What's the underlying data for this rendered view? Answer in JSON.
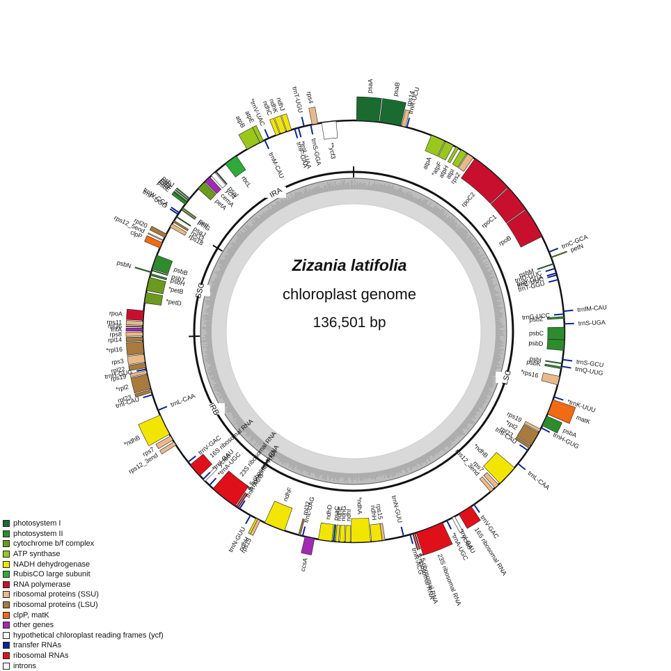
{
  "title": {
    "species": "Zizania latifolia",
    "subtitle": "chloroplast genome",
    "size": "136,501 bp"
  },
  "regions": [
    {
      "label": "LSC",
      "start": 0,
      "end": 81000
    },
    {
      "label": "IRB",
      "start": 81000,
      "end": 101700
    },
    {
      "label": "SSC",
      "start": 101700,
      "end": 114300
    },
    {
      "label": "IRA",
      "start": 114300,
      "end": 136501
    }
  ],
  "legend": [
    {
      "label": "photosystem I",
      "color": "#1a6b2f"
    },
    {
      "label": "photosystem II",
      "color": "#2e8b2e"
    },
    {
      "label": "cytochrome b/f complex",
      "color": "#6b9a1e"
    },
    {
      "label": "ATP synthase",
      "color": "#9ac71d"
    },
    {
      "label": "NADH dehydrogenase",
      "color": "#f2e600"
    },
    {
      "label": "RubisCO large subunit",
      "color": "#2faa3a"
    },
    {
      "label": "RNA polymerase",
      "color": "#c8102e"
    },
    {
      "label": "ribosomal proteins (SSU)",
      "color": "#e9b98a"
    },
    {
      "label": "ribosomal proteins (LSU)",
      "color": "#a87a3e"
    },
    {
      "label": "clpP, matK",
      "color": "#f26a12"
    },
    {
      "label": "other genes",
      "color": "#a02bb0"
    },
    {
      "label": "hypothetical chloroplast reading frames (ycf)",
      "color": "#ffffff"
    },
    {
      "label": "transfer RNAs",
      "color": "#10248f"
    },
    {
      "label": "ribosomal RNAs",
      "color": "#e0101b"
    },
    {
      "label": "introns",
      "color": "#ffffff"
    }
  ],
  "genes": [
    {
      "name": "psaA",
      "cat": 0,
      "start": 300,
      "end": 2600,
      "strand": "out"
    },
    {
      "name": "psaB",
      "cat": 0,
      "start": 2700,
      "end": 4900,
      "strand": "out"
    },
    {
      "name": "rps14",
      "cat": 7,
      "start": 5000,
      "end": 5400,
      "strand": "out"
    },
    {
      "name": "trnR-UCU",
      "cat": 12,
      "start": 5500,
      "end": 5600,
      "strand": "out"
    },
    {
      "name": "atpA",
      "cat": 3,
      "start": 8200,
      "end": 9700,
      "strand": "in"
    },
    {
      "name": "*atpF",
      "cat": 3,
      "start": 9800,
      "end": 10700,
      "strand": "in"
    },
    {
      "name": "atpH",
      "cat": 3,
      "start": 11000,
      "end": 11300,
      "strand": "in"
    },
    {
      "name": "atpI",
      "cat": 3,
      "start": 11600,
      "end": 12300,
      "strand": "in"
    },
    {
      "name": "rps2",
      "cat": 7,
      "start": 12400,
      "end": 13100,
      "strand": "in"
    },
    {
      "name": "rpoC2",
      "cat": 6,
      "start": 13300,
      "end": 17800,
      "strand": "in"
    },
    {
      "name": "rpoC1",
      "cat": 6,
      "start": 17900,
      "end": 20700,
      "strand": "in"
    },
    {
      "name": "rpoB",
      "cat": 6,
      "start": 20800,
      "end": 24000,
      "strand": "in"
    },
    {
      "name": "trnC-GCA",
      "cat": 12,
      "start": 25700,
      "end": 25800,
      "strand": "out"
    },
    {
      "name": "petN",
      "cat": 2,
      "start": 26300,
      "end": 26400,
      "strand": "out"
    },
    {
      "name": "psbM",
      "cat": 1,
      "start": 27000,
      "end": 27100,
      "strand": "in"
    },
    {
      "name": "trnD-GUC",
      "cat": 12,
      "start": 27500,
      "end": 27600,
      "strand": "in"
    },
    {
      "name": "trnY-GUA",
      "cat": 12,
      "start": 28000,
      "end": 28100,
      "strand": "in"
    },
    {
      "name": "trnE-UUC",
      "cat": 12,
      "start": 28200,
      "end": 28300,
      "strand": "in"
    },
    {
      "name": "trnT-GGU",
      "cat": 12,
      "start": 28700,
      "end": 28800,
      "strand": "in"
    },
    {
      "name": "trnfM-CAU",
      "cat": 12,
      "start": 32000,
      "end": 32100,
      "strand": "out"
    },
    {
      "name": "trnG-UCC",
      "cat": 12,
      "start": 32300,
      "end": 32400,
      "strand": "in"
    },
    {
      "name": "psbZ",
      "cat": 1,
      "start": 32600,
      "end": 32800,
      "strand": "in"
    },
    {
      "name": "trnS-UGA",
      "cat": 12,
      "start": 33300,
      "end": 33400,
      "strand": "out"
    },
    {
      "name": "psbC",
      "cat": 1,
      "start": 33700,
      "end": 35000,
      "strand": "in"
    },
    {
      "name": "psbD",
      "cat": 1,
      "start": 35000,
      "end": 36100,
      "strand": "in"
    },
    {
      "name": "trnS-GCU",
      "cat": 12,
      "start": 37000,
      "end": 37100,
      "strand": "out"
    },
    {
      "name": "psbI",
      "cat": 1,
      "start": 37400,
      "end": 37500,
      "strand": "in"
    },
    {
      "name": "trnQ-UUG",
      "cat": 12,
      "start": 37700,
      "end": 37800,
      "strand": "out"
    },
    {
      "name": "psbK",
      "cat": 1,
      "start": 37800,
      "end": 38000,
      "strand": "in"
    },
    {
      "name": "*rps16",
      "cat": 7,
      "start": 38800,
      "end": 39700,
      "strand": "in"
    },
    {
      "name": "*trnK-UUU",
      "cat": 12,
      "start": 40700,
      "end": 41300,
      "strand": "out"
    },
    {
      "name": "matK",
      "cat": 9,
      "start": 41300,
      "end": 42900,
      "strand": "out"
    },
    {
      "name": "psbA",
      "cat": 1,
      "start": 43100,
      "end": 44200,
      "strand": "out"
    },
    {
      "name": "trnH-GUG",
      "cat": 12,
      "start": 44400,
      "end": 44500,
      "strand": "out"
    },
    {
      "name": "rps19",
      "cat": 7,
      "start": 44600,
      "end": 44900,
      "strand": "in"
    },
    {
      "name": "*rpl2",
      "cat": 8,
      "start": 45000,
      "end": 46500,
      "strand": "in"
    },
    {
      "name": "rpl23",
      "cat": 8,
      "start": 46600,
      "end": 46900,
      "strand": "in"
    },
    {
      "name": "trnI-CAU",
      "cat": 12,
      "start": 47100,
      "end": 47200,
      "strand": "in"
    },
    {
      "name": "trnL-CAA",
      "cat": 12,
      "start": 48800,
      "end": 48900,
      "strand": "out"
    },
    {
      "name": "*ndhB",
      "cat": 4,
      "start": 49400,
      "end": 51600,
      "strand": "in"
    },
    {
      "name": "rps7",
      "cat": 7,
      "start": 51800,
      "end": 52300,
      "strand": "in"
    },
    {
      "name": "rps12_3end",
      "cat": 7,
      "start": 52500,
      "end": 52900,
      "strand": "in"
    },
    {
      "name": "trnV-GAC",
      "cat": 12,
      "start": 55000,
      "end": 55100,
      "strand": "out"
    },
    {
      "name": "16S ribosomal RNA",
      "cat": 13,
      "start": 55400,
      "end": 56900,
      "strand": "out"
    },
    {
      "name": "*trnI-GAU",
      "cat": 12,
      "start": 57100,
      "end": 57800,
      "strand": "out"
    },
    {
      "name": "ycf68",
      "cat": 11,
      "start": 57400,
      "end": 57700,
      "strand": "out"
    },
    {
      "name": "*trnA-UGC",
      "cat": 12,
      "start": 57900,
      "end": 58700,
      "strand": "out"
    },
    {
      "name": "23S ribosomal RNA",
      "cat": 13,
      "start": 58800,
      "end": 61700,
      "strand": "out"
    },
    {
      "name": "4.5 ribosomal RNA",
      "cat": 13,
      "start": 61800,
      "end": 61900,
      "strand": "out"
    },
    {
      "name": "5 ribosomal RNA",
      "cat": 13,
      "start": 62000,
      "end": 62100,
      "strand": "out"
    },
    {
      "name": "trnR-ACG",
      "cat": 12,
      "start": 62300,
      "end": 62400,
      "strand": "out"
    },
    {
      "name": "trnN-GUU",
      "cat": 12,
      "start": 63000,
      "end": 63100,
      "strand": "in"
    },
    {
      "name": "rps15",
      "cat": 7,
      "start": 65000,
      "end": 65300,
      "strand": "in"
    },
    {
      "name": "ndhH",
      "cat": 4,
      "start": 65300,
      "end": 66400,
      "strand": "in"
    },
    {
      "name": "*ndhA",
      "cat": 4,
      "start": 66500,
      "end": 68500,
      "strand": "in"
    },
    {
      "name": "ndhI",
      "cat": 4,
      "start": 68600,
      "end": 69100,
      "strand": "in"
    },
    {
      "name": "ndhG",
      "cat": 4,
      "start": 69200,
      "end": 69700,
      "strand": "in"
    },
    {
      "name": "ndhE",
      "cat": 4,
      "start": 69800,
      "end": 70100,
      "strand": "in"
    },
    {
      "name": "psaC",
      "cat": 0,
      "start": 70200,
      "end": 70400,
      "strand": "in"
    },
    {
      "name": "ndhD",
      "cat": 4,
      "start": 70500,
      "end": 71900,
      "strand": "in"
    },
    {
      "name": "ccsA",
      "cat": 10,
      "start": 72300,
      "end": 73300,
      "strand": "out"
    },
    {
      "name": "trnL-UAG",
      "cat": 12,
      "start": 73500,
      "end": 73600,
      "strand": "in"
    },
    {
      "name": "rpl32",
      "cat": 8,
      "start": 73800,
      "end": 74000,
      "strand": "in"
    },
    {
      "name": "ndhF",
      "cat": 4,
      "start": 75500,
      "end": 77700,
      "strand": "in"
    },
    {
      "name": "rps15",
      "cat": 7,
      "start": 78200,
      "end": 78500,
      "strand": "out"
    },
    {
      "name": "ndhH",
      "cat": 4,
      "start": 78500,
      "end": 78700,
      "strand": "out"
    },
    {
      "name": "trnN-GUU",
      "cat": 12,
      "start": 79300,
      "end": 79400,
      "strand": "out"
    },
    {
      "name": "trnR-ACG",
      "cat": 12,
      "start": 80600,
      "end": 80700,
      "strand": "in"
    },
    {
      "name": "5 ribosomal RNA",
      "cat": 13,
      "start": 80800,
      "end": 80900,
      "strand": "in"
    },
    {
      "name": "4.5 ribosomal RNA",
      "cat": 13,
      "start": 81000,
      "end": 81100,
      "strand": "in"
    },
    {
      "name": "23S ribosomal RNA",
      "cat": 13,
      "start": 81200,
      "end": 84100,
      "strand": "in"
    },
    {
      "name": "*trnA-UGC",
      "cat": 12,
      "start": 84200,
      "end": 85000,
      "strand": "in"
    },
    {
      "name": "ycf68",
      "cat": 11,
      "start": 85200,
      "end": 85500,
      "strand": "in"
    },
    {
      "name": "*trnI-GAU",
      "cat": 12,
      "start": 85100,
      "end": 85900,
      "strand": "in"
    },
    {
      "name": "16S ribosomal RNA",
      "cat": 13,
      "start": 86000,
      "end": 87500,
      "strand": "in"
    },
    {
      "name": "trnV-GAC",
      "cat": 12,
      "start": 87800,
      "end": 87900,
      "strand": "in"
    },
    {
      "name": "rps12_3end",
      "cat": 7,
      "start": 90000,
      "end": 90400,
      "strand": "out"
    },
    {
      "name": "rps7",
      "cat": 7,
      "start": 90600,
      "end": 91100,
      "strand": "out"
    },
    {
      "name": "*ndhB",
      "cat": 4,
      "start": 91300,
      "end": 93500,
      "strand": "out"
    },
    {
      "name": "trnL-CAA",
      "cat": 12,
      "start": 94000,
      "end": 94100,
      "strand": "in"
    },
    {
      "name": "trnI-CAU",
      "cat": 12,
      "start": 95700,
      "end": 95800,
      "strand": "out"
    },
    {
      "name": "rpl23",
      "cat": 8,
      "start": 96000,
      "end": 96300,
      "strand": "out"
    },
    {
      "name": "*rpl2",
      "cat": 8,
      "start": 96400,
      "end": 97900,
      "strand": "out"
    },
    {
      "name": "rps19",
      "cat": 7,
      "start": 98000,
      "end": 98300,
      "strand": "out"
    },
    {
      "name": "trnH-GUG",
      "cat": 12,
      "start": 98400,
      "end": 98500,
      "strand": "out"
    },
    {
      "name": "rpl22",
      "cat": 8,
      "start": 98600,
      "end": 99100,
      "strand": "out"
    },
    {
      "name": "rps3",
      "cat": 7,
      "start": 99200,
      "end": 100000,
      "strand": "out"
    },
    {
      "name": "*rpl16",
      "cat": 8,
      "start": 100100,
      "end": 101300,
      "strand": "out"
    },
    {
      "name": "rpl14",
      "cat": 8,
      "start": 101400,
      "end": 101800,
      "strand": "out"
    },
    {
      "name": "rps8",
      "cat": 7,
      "start": 101900,
      "end": 102300,
      "strand": "out"
    },
    {
      "name": "infA",
      "cat": 10,
      "start": 102400,
      "end": 102700,
      "strand": "out"
    },
    {
      "name": "rpl36",
      "cat": 8,
      "start": 102800,
      "end": 102900,
      "strand": "out"
    },
    {
      "name": "rps11",
      "cat": 7,
      "start": 103000,
      "end": 103400,
      "strand": "out"
    },
    {
      "name": "rpoA",
      "cat": 6,
      "start": 103500,
      "end": 104500,
      "strand": "out"
    },
    {
      "name": "*petD",
      "cat": 2,
      "start": 105300,
      "end": 106400,
      "strand": "in"
    },
    {
      "name": "*petB",
      "cat": 2,
      "start": 106600,
      "end": 108000,
      "strand": "in"
    },
    {
      "name": "psbH",
      "cat": 1,
      "start": 108200,
      "end": 108400,
      "strand": "in"
    },
    {
      "name": "psbN",
      "cat": 1,
      "start": 108500,
      "end": 108600,
      "strand": "out"
    },
    {
      "name": "psbT",
      "cat": 1,
      "start": 108700,
      "end": 108800,
      "strand": "in"
    },
    {
      "name": "psbB",
      "cat": 1,
      "start": 108900,
      "end": 110400,
      "strand": "in"
    },
    {
      "name": "clpP",
      "cat": 9,
      "start": 111200,
      "end": 111800,
      "strand": "out"
    },
    {
      "name": "rps12_5end",
      "cat": 7,
      "start": 112000,
      "end": 112100,
      "strand": "out"
    },
    {
      "name": "rpl20",
      "cat": 8,
      "start": 112400,
      "end": 112800,
      "strand": "out"
    },
    {
      "name": "rps18",
      "cat": 7,
      "start": 113600,
      "end": 114000,
      "strand": "in"
    },
    {
      "name": "rpl33",
      "cat": 8,
      "start": 114200,
      "end": 114400,
      "strand": "in"
    },
    {
      "name": "psaJ",
      "cat": 0,
      "start": 114800,
      "end": 114900,
      "strand": "in"
    },
    {
      "name": "trnP-UGG",
      "cat": 12,
      "start": 115100,
      "end": 115200,
      "strand": "out"
    },
    {
      "name": "trnW-CCA",
      "cat": 12,
      "start": 115300,
      "end": 115400,
      "strand": "out"
    },
    {
      "name": "petG",
      "cat": 2,
      "start": 115700,
      "end": 115800,
      "strand": "in"
    },
    {
      "name": "petL",
      "cat": 2,
      "start": 115900,
      "end": 116000,
      "strand": "in"
    },
    {
      "name": "psbE",
      "cat": 1,
      "start": 116400,
      "end": 116700,
      "strand": "out"
    },
    {
      "name": "psbF",
      "cat": 1,
      "start": 116700,
      "end": 116800,
      "strand": "out"
    },
    {
      "name": "psbL",
      "cat": 1,
      "start": 116900,
      "end": 117000,
      "strand": "out"
    },
    {
      "name": "psbJ",
      "cat": 1,
      "start": 117100,
      "end": 117200,
      "strand": "out"
    },
    {
      "name": "petA",
      "cat": 2,
      "start": 118500,
      "end": 119400,
      "strand": "in"
    },
    {
      "name": "cemA",
      "cat": 10,
      "start": 119500,
      "end": 120200,
      "strand": "in"
    },
    {
      "name": "ycf4",
      "cat": 11,
      "start": 120400,
      "end": 120900,
      "strand": "in"
    },
    {
      "name": "psaI",
      "cat": 0,
      "start": 121000,
      "end": 121100,
      "strand": "in"
    },
    {
      "name": "rbcL",
      "cat": 5,
      "start": 122300,
      "end": 123700,
      "strand": "in"
    },
    {
      "name": "atpB",
      "cat": 3,
      "start": 125000,
      "end": 126500,
      "strand": "out"
    },
    {
      "name": "atpE",
      "cat": 3,
      "start": 126500,
      "end": 126900,
      "strand": "out"
    },
    {
      "name": "trnM-CAU",
      "cat": 12,
      "start": 127000,
      "end": 127100,
      "strand": "in"
    },
    {
      "name": "*trnV-UAC",
      "cat": 12,
      "start": 127200,
      "end": 127800,
      "strand": "out"
    },
    {
      "name": "ndhC",
      "cat": 4,
      "start": 128300,
      "end": 128700,
      "strand": "out"
    },
    {
      "name": "ndhK",
      "cat": 4,
      "start": 128800,
      "end": 129400,
      "strand": "out"
    },
    {
      "name": "ndhJ",
      "cat": 4,
      "start": 129500,
      "end": 130000,
      "strand": "out"
    },
    {
      "name": "trnF-GAA",
      "cat": 12,
      "start": 130300,
      "end": 130400,
      "strand": "in"
    },
    {
      "name": "*trnL-UAA",
      "cat": 12,
      "start": 130500,
      "end": 131000,
      "strand": "in"
    },
    {
      "name": "trnT-UGU",
      "cat": 12,
      "start": 131300,
      "end": 131400,
      "strand": "out"
    },
    {
      "name": "trnS-GGA",
      "cat": 12,
      "start": 132000,
      "end": 132100,
      "strand": "in"
    },
    {
      "name": "rps4",
      "cat": 7,
      "start": 132200,
      "end": 132800,
      "strand": "out"
    },
    {
      "name": "**ycf3",
      "cat": 11,
      "start": 133200,
      "end": 134700,
      "strand": "in"
    }
  ]
}
